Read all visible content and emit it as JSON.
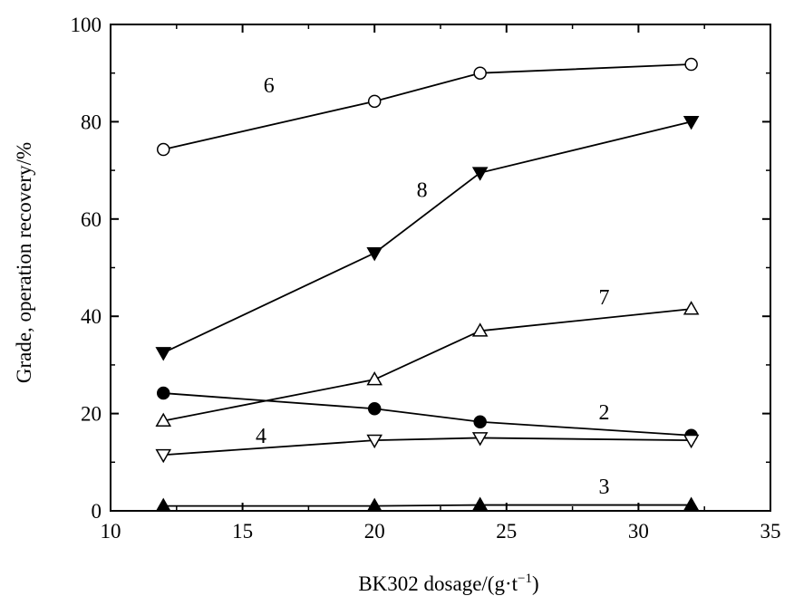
{
  "chart_data": {
    "type": "line",
    "xlabel": "BK302 dosage/(g·t",
    "xlabel_sup": "−1",
    "xlabel_end": ")",
    "ylabel": "Grade, operation recovery/%",
    "xlim": [
      10,
      35
    ],
    "ylim": [
      0,
      100
    ],
    "xticks": [
      10,
      15,
      20,
      25,
      30,
      35
    ],
    "yticks": [
      0,
      20,
      40,
      60,
      80,
      100
    ],
    "grid": false,
    "x": [
      12,
      20,
      24,
      32
    ],
    "series": [
      {
        "name": "6",
        "marker": "open-circle",
        "values": [
          74.3,
          84.2,
          90.0,
          91.8
        ],
        "label_pos": [
          16,
          86
        ]
      },
      {
        "name": "8",
        "marker": "filled-triangle-down",
        "values": [
          32.5,
          53.0,
          69.5,
          80.0
        ],
        "label_pos": [
          21.8,
          64.5
        ]
      },
      {
        "name": "7",
        "marker": "open-triangle-up",
        "values": [
          18.5,
          27.0,
          37.0,
          41.5
        ],
        "label_pos": [
          28.7,
          42.5
        ]
      },
      {
        "name": "2",
        "marker": "filled-circle",
        "values": [
          24.2,
          21.0,
          18.3,
          15.5
        ],
        "label_pos": [
          28.7,
          18.8
        ]
      },
      {
        "name": "4",
        "marker": "open-triangle-down",
        "values": [
          11.5,
          14.5,
          15.0,
          14.5
        ],
        "label_pos": [
          15.7,
          14.0
        ]
      },
      {
        "name": "3",
        "marker": "filled-triangle-up",
        "values": [
          1.0,
          1.0,
          1.2,
          1.2
        ],
        "label_pos": [
          28.7,
          3.5
        ]
      }
    ]
  }
}
